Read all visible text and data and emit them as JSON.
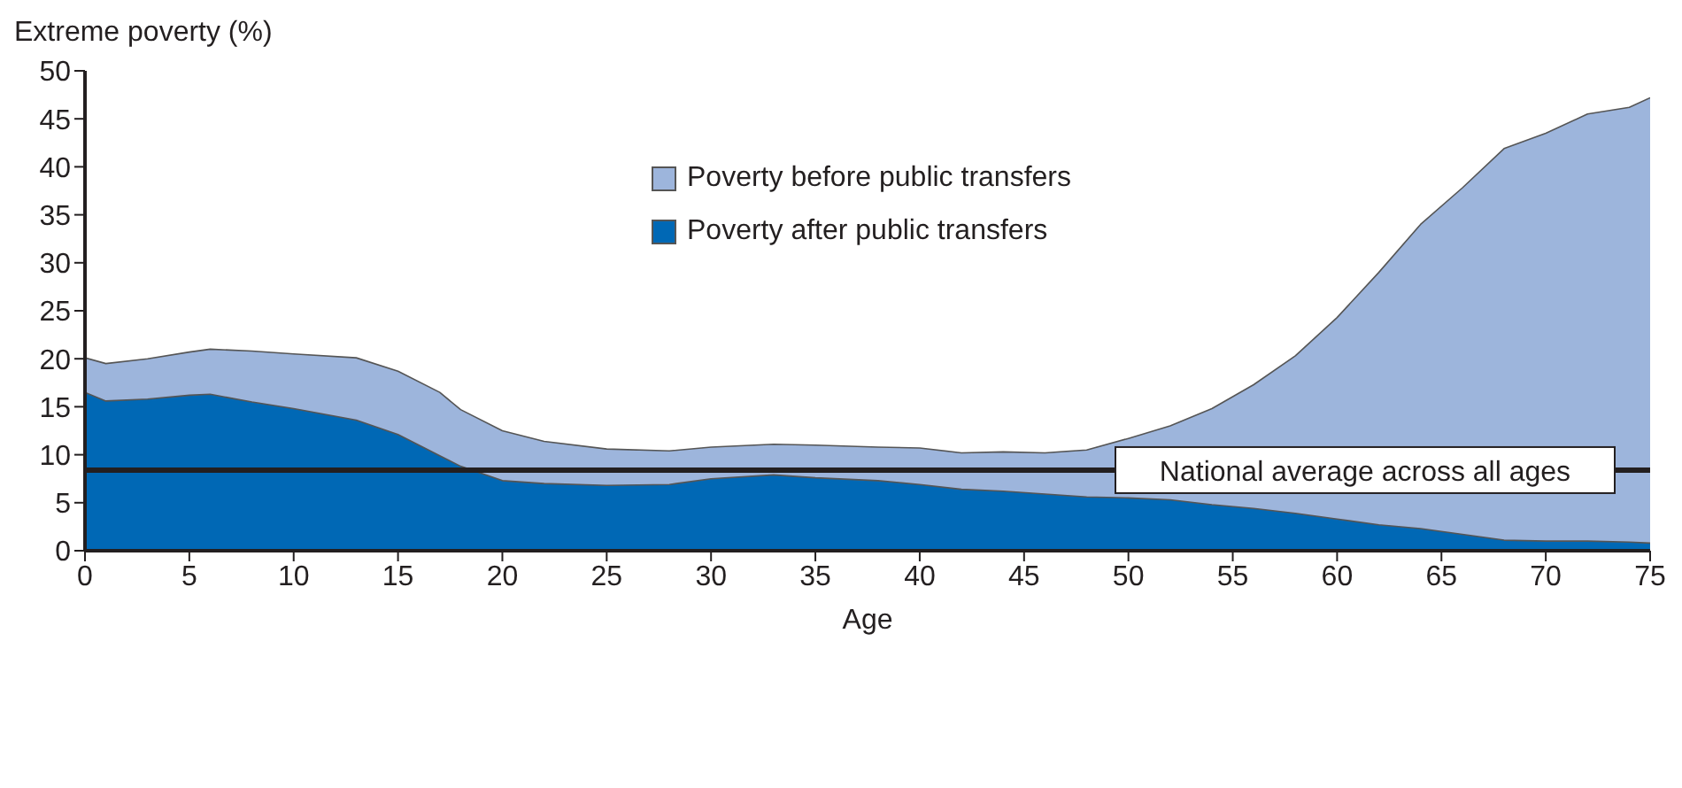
{
  "chart_data": {
    "type": "area",
    "ylabel": "Extreme poverty (%)",
    "xlabel": "Age",
    "x": [
      0,
      1,
      3,
      5,
      6,
      8,
      10,
      13,
      15,
      17,
      18,
      20,
      22,
      25,
      28,
      30,
      33,
      35,
      38,
      40,
      42,
      44,
      46,
      48,
      50,
      52,
      54,
      56,
      58,
      60,
      62,
      64,
      66,
      68,
      70,
      72,
      74,
      75
    ],
    "series": [
      {
        "name": "Poverty before public transfers",
        "color": "#9db5dc",
        "values": [
          20.1,
          19.5,
          20,
          20.7,
          21,
          20.8,
          20.5,
          20.1,
          18.7,
          16.5,
          14.7,
          12.5,
          11.4,
          10.6,
          10.4,
          10.8,
          11.1,
          11,
          10.8,
          10.7,
          10.2,
          10.3,
          10.2,
          10.5,
          11.7,
          13,
          14.8,
          17.3,
          20.3,
          24.3,
          29,
          34,
          37.8,
          41.9,
          43.5,
          45.5,
          46.2,
          47.2
        ]
      },
      {
        "name": "Poverty after public transfers",
        "color": "#0068b5",
        "values": [
          16.5,
          15.6,
          15.8,
          16.2,
          16.3,
          15.5,
          14.8,
          13.6,
          12.1,
          9.9,
          8.8,
          7.3,
          7,
          6.8,
          6.9,
          7.5,
          7.9,
          7.6,
          7.3,
          6.9,
          6.4,
          6.2,
          5.9,
          5.6,
          5.5,
          5.3,
          4.8,
          4.4,
          3.9,
          3.3,
          2.7,
          2.3,
          1.7,
          1.1,
          1,
          1,
          0.9,
          0.8
        ]
      }
    ],
    "ref_lines": [
      {
        "axis": "y",
        "value": 8.4,
        "label": "National average across all ages",
        "color": "#231f20"
      }
    ],
    "xlim": [
      0,
      75
    ],
    "xticks": [
      0,
      5,
      10,
      15,
      20,
      25,
      30,
      35,
      40,
      45,
      50,
      55,
      60,
      65,
      70,
      75
    ],
    "ylim": [
      0,
      50
    ],
    "yticks": [
      0,
      5,
      10,
      15,
      20,
      25,
      30,
      35,
      40,
      45,
      50
    ],
    "grid": false,
    "legend": "top"
  }
}
